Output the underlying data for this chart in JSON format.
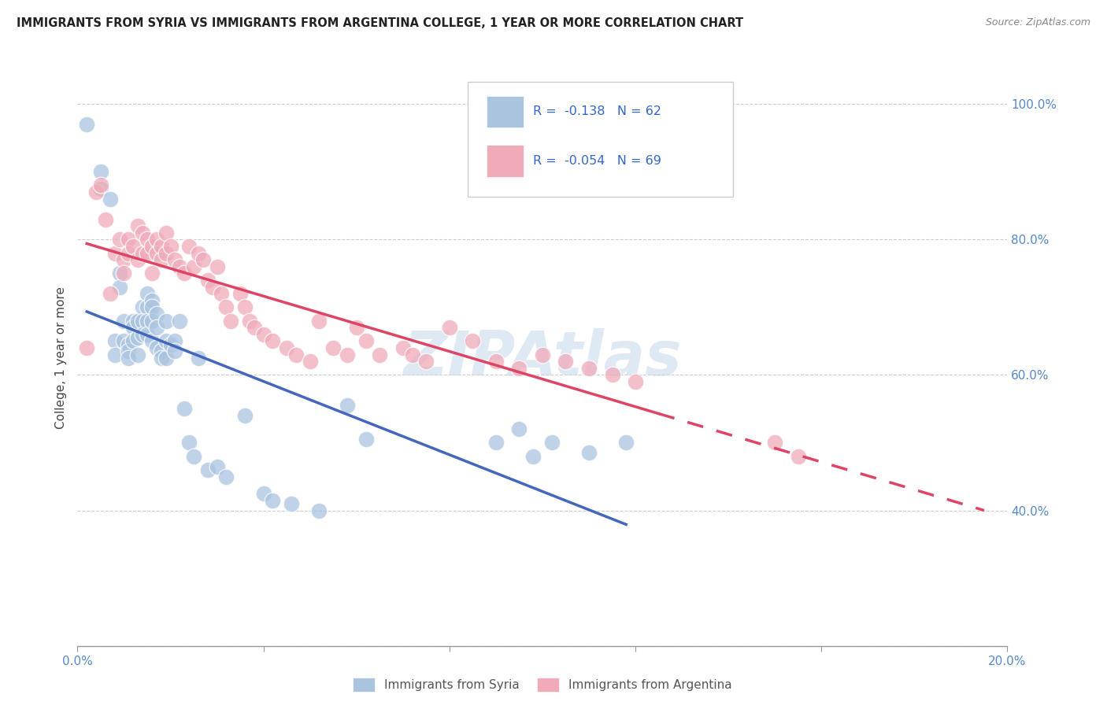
{
  "title": "IMMIGRANTS FROM SYRIA VS IMMIGRANTS FROM ARGENTINA COLLEGE, 1 YEAR OR MORE CORRELATION CHART",
  "source": "Source: ZipAtlas.com",
  "ylabel": "College, 1 year or more",
  "r_syria": -0.138,
  "n_syria": 62,
  "r_argentina": -0.054,
  "n_argentina": 69,
  "color_syria": "#aac4e0",
  "color_argentina": "#f0aab8",
  "trendline_syria_color": "#4466bb",
  "trendline_argentina_color": "#dd4466",
  "xlim": [
    0.0,
    0.2
  ],
  "ylim": [
    0.2,
    1.05
  ],
  "syria_x": [
    0.002,
    0.005,
    0.005,
    0.007,
    0.008,
    0.008,
    0.009,
    0.009,
    0.01,
    0.01,
    0.011,
    0.011,
    0.011,
    0.012,
    0.012,
    0.012,
    0.013,
    0.013,
    0.013,
    0.014,
    0.014,
    0.014,
    0.015,
    0.015,
    0.015,
    0.015,
    0.016,
    0.016,
    0.016,
    0.016,
    0.017,
    0.017,
    0.017,
    0.018,
    0.018,
    0.019,
    0.019,
    0.019,
    0.02,
    0.021,
    0.021,
    0.022,
    0.023,
    0.024,
    0.025,
    0.026,
    0.028,
    0.03,
    0.032,
    0.036,
    0.04,
    0.042,
    0.046,
    0.052,
    0.058,
    0.062,
    0.09,
    0.095,
    0.098,
    0.102,
    0.11,
    0.118
  ],
  "syria_y": [
    0.97,
    0.9,
    0.875,
    0.86,
    0.65,
    0.63,
    0.75,
    0.73,
    0.68,
    0.65,
    0.645,
    0.635,
    0.625,
    0.68,
    0.67,
    0.65,
    0.68,
    0.655,
    0.63,
    0.7,
    0.68,
    0.66,
    0.72,
    0.7,
    0.68,
    0.66,
    0.71,
    0.7,
    0.68,
    0.65,
    0.69,
    0.67,
    0.64,
    0.635,
    0.625,
    0.68,
    0.65,
    0.625,
    0.645,
    0.65,
    0.635,
    0.68,
    0.55,
    0.5,
    0.48,
    0.625,
    0.46,
    0.465,
    0.45,
    0.54,
    0.425,
    0.415,
    0.41,
    0.4,
    0.555,
    0.505,
    0.5,
    0.52,
    0.48,
    0.5,
    0.485,
    0.5
  ],
  "argentina_x": [
    0.002,
    0.004,
    0.005,
    0.006,
    0.007,
    0.008,
    0.009,
    0.01,
    0.01,
    0.011,
    0.011,
    0.012,
    0.013,
    0.013,
    0.014,
    0.014,
    0.015,
    0.015,
    0.016,
    0.016,
    0.017,
    0.017,
    0.018,
    0.018,
    0.019,
    0.019,
    0.02,
    0.021,
    0.022,
    0.023,
    0.024,
    0.025,
    0.026,
    0.027,
    0.028,
    0.029,
    0.03,
    0.031,
    0.032,
    0.033,
    0.035,
    0.036,
    0.037,
    0.038,
    0.04,
    0.042,
    0.045,
    0.047,
    0.05,
    0.052,
    0.055,
    0.058,
    0.06,
    0.062,
    0.065,
    0.07,
    0.072,
    0.075,
    0.08,
    0.085,
    0.09,
    0.095,
    0.1,
    0.105,
    0.11,
    0.115,
    0.12,
    0.15,
    0.155
  ],
  "argentina_y": [
    0.64,
    0.87,
    0.88,
    0.83,
    0.72,
    0.78,
    0.8,
    0.77,
    0.75,
    0.8,
    0.78,
    0.79,
    0.82,
    0.77,
    0.81,
    0.78,
    0.8,
    0.78,
    0.79,
    0.75,
    0.8,
    0.78,
    0.79,
    0.77,
    0.81,
    0.78,
    0.79,
    0.77,
    0.76,
    0.75,
    0.79,
    0.76,
    0.78,
    0.77,
    0.74,
    0.73,
    0.76,
    0.72,
    0.7,
    0.68,
    0.72,
    0.7,
    0.68,
    0.67,
    0.66,
    0.65,
    0.64,
    0.63,
    0.62,
    0.68,
    0.64,
    0.63,
    0.67,
    0.65,
    0.63,
    0.64,
    0.63,
    0.62,
    0.67,
    0.65,
    0.62,
    0.61,
    0.63,
    0.62,
    0.61,
    0.6,
    0.59,
    0.5,
    0.48
  ]
}
